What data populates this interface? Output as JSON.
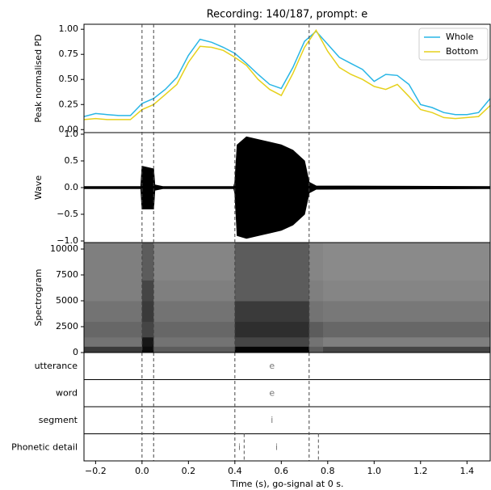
{
  "chart_data": [
    {
      "type": "line",
      "title": "Recording: 140/187, prompt: e",
      "ylabel": "Peak normalised PD",
      "x": [
        -0.25,
        -0.2,
        -0.15,
        -0.1,
        -0.05,
        0,
        0.05,
        0.1,
        0.15,
        0.2,
        0.25,
        0.3,
        0.35,
        0.4,
        0.45,
        0.5,
        0.55,
        0.6,
        0.65,
        0.7,
        0.75,
        0.8,
        0.85,
        0.9,
        0.95,
        1.0,
        1.05,
        1.1,
        1.15,
        1.2,
        1.25,
        1.3,
        1.35,
        1.4,
        1.45,
        1.5
      ],
      "series": [
        {
          "name": "Whole",
          "color": "#29b6e6",
          "values": [
            0.13,
            0.16,
            0.15,
            0.14,
            0.14,
            0.26,
            0.31,
            0.4,
            0.52,
            0.74,
            0.9,
            0.87,
            0.82,
            0.76,
            0.66,
            0.55,
            0.45,
            0.41,
            0.62,
            0.88,
            0.98,
            0.85,
            0.72,
            0.66,
            0.6,
            0.48,
            0.55,
            0.54,
            0.45,
            0.25,
            0.22,
            0.17,
            0.15,
            0.15,
            0.17,
            0.31
          ]
        },
        {
          "name": "Bottom",
          "color": "#e6d11c",
          "values": [
            0.1,
            0.11,
            0.1,
            0.1,
            0.1,
            0.2,
            0.25,
            0.35,
            0.45,
            0.67,
            0.83,
            0.82,
            0.79,
            0.72,
            0.64,
            0.5,
            0.4,
            0.34,
            0.56,
            0.82,
            0.99,
            0.78,
            0.62,
            0.55,
            0.5,
            0.43,
            0.4,
            0.45,
            0.33,
            0.2,
            0.17,
            0.12,
            0.11,
            0.12,
            0.13,
            0.24
          ]
        }
      ],
      "xlim": [
        -0.25,
        1.5
      ],
      "ylim": [
        -0.03,
        1.05
      ],
      "yticks": [
        {
          "value": 0,
          "label": "0.00"
        },
        {
          "value": 0.25,
          "label": "0.25"
        },
        {
          "value": 0.5,
          "label": "0.50"
        },
        {
          "value": 0.75,
          "label": "0.75"
        },
        {
          "value": 1,
          "label": "1.00"
        }
      ],
      "legend": "upper right"
    },
    {
      "type": "area",
      "ylabel": "Wave",
      "color": "#000000",
      "x": [
        -0.25,
        -0.005,
        0.0,
        0.05,
        0.055,
        0.09,
        0.395,
        0.4,
        0.41,
        0.45,
        0.5,
        0.55,
        0.6,
        0.65,
        0.7,
        0.72,
        0.75,
        1.5
      ],
      "upper": [
        0.02,
        0.02,
        0.4,
        0.35,
        0.05,
        0.02,
        0.02,
        0.1,
        0.8,
        0.95,
        0.9,
        0.85,
        0.8,
        0.7,
        0.5,
        0.1,
        0.03,
        0.02
      ],
      "lower": [
        -0.02,
        -0.02,
        -0.4,
        -0.4,
        -0.05,
        -0.02,
        -0.02,
        -0.1,
        -0.9,
        -0.95,
        -0.9,
        -0.85,
        -0.8,
        -0.7,
        -0.5,
        -0.1,
        -0.03,
        -0.02
      ],
      "xlim": [
        -0.25,
        1.5
      ],
      "ylim": [
        -1.03,
        1.03
      ],
      "yticks": [
        {
          "value": -1,
          "label": "−1.0"
        },
        {
          "value": -0.5,
          "label": "−0.5"
        },
        {
          "value": 0,
          "label": "0.0"
        },
        {
          "value": 0.5,
          "label": "0.5"
        },
        {
          "value": 1,
          "label": "1.0"
        }
      ]
    },
    {
      "type": "heatmap",
      "ylabel": "Spectrogram",
      "x_edges": [
        -0.25,
        0,
        0.05,
        0.4,
        0.72,
        0.78,
        1.5
      ],
      "y_edges": [
        0,
        600,
        1500,
        3000,
        5000,
        7000,
        10625
      ],
      "values": [
        [
          0.75,
          0.95,
          0.6,
          0.98,
          0.6,
          0.7
        ],
        [
          0.5,
          0.9,
          0.5,
          0.7,
          0.5,
          0.45
        ],
        [
          0.55,
          0.7,
          0.55,
          0.8,
          0.6,
          0.55
        ],
        [
          0.5,
          0.75,
          0.5,
          0.75,
          0.5,
          0.48
        ],
        [
          0.45,
          0.7,
          0.45,
          0.6,
          0.45,
          0.42
        ],
        [
          0.45,
          0.6,
          0.42,
          0.6,
          0.42,
          0.4
        ]
      ],
      "xlim": [
        -0.25,
        1.5
      ],
      "ylim": [
        0,
        10625
      ],
      "yticks": [
        0,
        2500,
        5000,
        7500,
        10000
      ]
    },
    {
      "type": "tiers",
      "boundaries": [
        0.0,
        0.05,
        0.4,
        0.72
      ],
      "tiers": [
        {
          "name": "utterance",
          "intervals": [
            {
              "start": 0.4,
              "end": 0.72,
              "label": "e"
            }
          ]
        },
        {
          "name": "word",
          "intervals": [
            {
              "start": 0.4,
              "end": 0.72,
              "label": "e"
            }
          ]
        },
        {
          "name": "segment",
          "intervals": [
            {
              "start": 0.4,
              "end": 0.72,
              "label": "i"
            }
          ]
        },
        {
          "name": "Phonetic detail",
          "boundaries": [
            0.44,
            0.76
          ],
          "intervals": [
            {
              "start": 0.4,
              "end": 0.44,
              "label": "i"
            },
            {
              "start": 0.44,
              "end": 0.72,
              "label": "i"
            }
          ]
        }
      ],
      "xlim": [
        -0.25,
        1.5
      ],
      "xticks": [
        {
          "value": -0.2,
          "label": "−0.2"
        },
        {
          "value": 0,
          "label": "0.0"
        },
        0.2,
        0.4,
        0.6,
        0.8,
        {
          "value": 1,
          "label": "1.0"
        },
        1.2,
        1.4
      ],
      "xlabel": "Time (s), go-signal at 0 s."
    }
  ]
}
